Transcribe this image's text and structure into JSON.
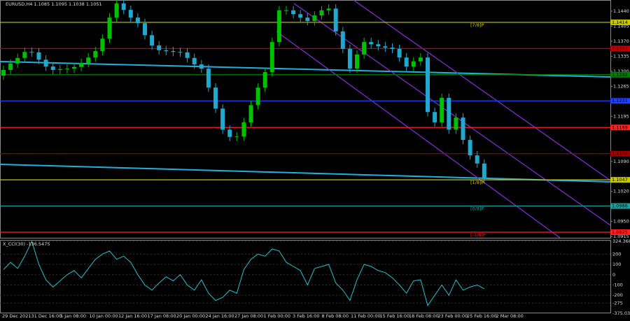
{
  "chart_data": {
    "type": "candlestick",
    "title": "EURUSD,H4  1.1085 1.1095 1.1038 1.1051",
    "up_color": "#00c000",
    "down_color": "#20a8d0",
    "ylim": [
      1.0912,
      1.1466
    ],
    "yticks": [
      {
        "value": 1.144,
        "label": "1.1440"
      },
      1.1405,
      {
        "value": 1.137,
        "label": "1.1370"
      },
      1.1335,
      {
        "value": 1.13,
        "label": "1.1300"
      },
      1.1265,
      1.1195,
      {
        "value": 1.109,
        "label": "1.1090"
      },
      {
        "value": 1.102,
        "label": "1.1020"
      },
      {
        "value": 1.095,
        "label": "1.0950"
      },
      1.0915
    ],
    "x_labels": [
      "29 Dec 2021",
      "31 Dec 16:00",
      "5 Jan 08:00",
      "10 Jan 00:00",
      "12 Jan 16:00",
      "17 Jan 08:00",
      "20 Jan 00:00",
      "24 Jan 16:00",
      "27 Jan 08:00",
      "1 Feb 00:00",
      "3 Feb 16:00",
      "8 Feb 08:00",
      "11 Feb 00:00",
      "15 Feb 16:00",
      "18 Feb 08:00",
      "23 Feb 00:00",
      "25 Feb 16:00",
      "2 Mar 08:00"
    ],
    "open": [
      1.129,
      1.1303,
      1.1318,
      1.1331,
      1.1345,
      1.1344,
      1.1327,
      1.1311,
      1.1303,
      1.1305,
      1.1306,
      1.131,
      1.1319,
      1.1332,
      1.1347,
      1.1376,
      1.1425,
      1.1458,
      1.1443,
      1.1425,
      1.1412,
      1.1384,
      1.136,
      1.1349,
      1.1347,
      1.1345,
      1.1344,
      1.1331,
      1.1316,
      1.1306,
      1.1262,
      1.1213,
      1.1164,
      1.1147,
      1.1148,
      1.1181,
      1.1221,
      1.1262,
      1.1298,
      1.1368,
      1.1442,
      1.1442,
      1.1433,
      1.1425,
      1.1417,
      1.143,
      1.1442,
      1.1446,
      1.1393,
      1.1352,
      1.1306,
      1.1339,
      1.1368,
      1.1363,
      1.1358,
      1.1355,
      1.1352,
      1.1332,
      1.1311,
      1.1323,
      1.1332,
      1.1205,
      1.1181,
      1.1238,
      1.1164,
      1.1192,
      1.114,
      1.1104,
      1.1085
    ],
    "high": [
      1.1313,
      1.1328,
      1.1341,
      1.1355,
      1.1355,
      1.1354,
      1.1337,
      1.1321,
      1.1315,
      1.1316,
      1.132,
      1.1329,
      1.1342,
      1.1357,
      1.1386,
      1.1435,
      1.1468,
      1.1468,
      1.1453,
      1.1435,
      1.1422,
      1.1394,
      1.137,
      1.1359,
      1.1357,
      1.1355,
      1.1354,
      1.1341,
      1.1326,
      1.1316,
      1.1272,
      1.1223,
      1.1174,
      1.1158,
      1.1191,
      1.1231,
      1.1272,
      1.1308,
      1.1378,
      1.1452,
      1.1452,
      1.1452,
      1.1443,
      1.1435,
      1.144,
      1.1452,
      1.1456,
      1.1456,
      1.1403,
      1.1362,
      1.1349,
      1.1378,
      1.1378,
      1.1373,
      1.1368,
      1.1365,
      1.1362,
      1.1342,
      1.1333,
      1.1342,
      1.1342,
      1.1215,
      1.1248,
      1.1248,
      1.1202,
      1.1202,
      1.115,
      1.1114,
      1.1095
    ],
    "low": [
      1.128,
      1.1293,
      1.1308,
      1.1321,
      1.1334,
      1.1317,
      1.1301,
      1.1293,
      1.1293,
      1.1295,
      1.1296,
      1.13,
      1.1309,
      1.1322,
      1.1337,
      1.1366,
      1.1415,
      1.1433,
      1.1415,
      1.1402,
      1.1374,
      1.135,
      1.1339,
      1.1337,
      1.1335,
      1.1334,
      1.1321,
      1.1306,
      1.1296,
      1.1252,
      1.1203,
      1.1154,
      1.1137,
      1.1137,
      1.1138,
      1.1171,
      1.1211,
      1.1252,
      1.1288,
      1.1358,
      1.1432,
      1.1423,
      1.1415,
      1.1407,
      1.1407,
      1.142,
      1.1432,
      1.1383,
      1.1342,
      1.1296,
      1.1296,
      1.1329,
      1.1353,
      1.1348,
      1.1345,
      1.1342,
      1.1322,
      1.1301,
      1.1301,
      1.1313,
      1.1195,
      1.1171,
      1.1171,
      1.1154,
      1.1154,
      1.113,
      1.1094,
      1.1075,
      1.1038
    ],
    "close": [
      1.1303,
      1.1318,
      1.1331,
      1.1345,
      1.1344,
      1.1327,
      1.1311,
      1.1303,
      1.1305,
      1.1306,
      1.131,
      1.1319,
      1.1332,
      1.1347,
      1.1376,
      1.1425,
      1.1458,
      1.1443,
      1.1425,
      1.1412,
      1.1384,
      1.136,
      1.1349,
      1.1347,
      1.1345,
      1.1344,
      1.1331,
      1.1316,
      1.1306,
      1.1262,
      1.1213,
      1.1164,
      1.1147,
      1.1148,
      1.1181,
      1.1221,
      1.1262,
      1.1298,
      1.1368,
      1.1442,
      1.1442,
      1.1433,
      1.1425,
      1.1417,
      1.143,
      1.1442,
      1.1446,
      1.1393,
      1.1352,
      1.1306,
      1.1339,
      1.1368,
      1.1363,
      1.1358,
      1.1355,
      1.1352,
      1.1332,
      1.1311,
      1.1323,
      1.1332,
      1.1205,
      1.1181,
      1.1238,
      1.1164,
      1.1192,
      1.114,
      1.1104,
      1.1085,
      1.1051
    ],
    "levels": [
      {
        "value": 1.1414,
        "color": "#c8c800",
        "tag": "[7/8]P"
      },
      {
        "value": 1.1353,
        "color": "#c00000"
      },
      {
        "value": 1.1292,
        "color": "#008000"
      },
      {
        "value": 1.1231,
        "color": "#2040ff"
      },
      {
        "value": 1.1169,
        "color": "#ff2020"
      },
      {
        "value": 1.1108,
        "color": "#a00000"
      },
      {
        "value": 1.1047,
        "color": "#c8c800",
        "tag": "[1/8]P"
      },
      {
        "value": 1.0986,
        "color": "#20a0a0",
        "tag": "[0/8]P"
      },
      {
        "value": 1.0925,
        "color": "#ff2020",
        "tag": "[-1/8]P"
      }
    ],
    "indicator": {
      "title": "X_CCI(30) -136.5475",
      "color": "#20c0d0",
      "ylim": [
        -375.0399,
        324.3682
      ],
      "yticks": [
        324.3682,
        200,
        100,
        0,
        -100,
        -200,
        -275,
        -375.0399
      ],
      "values": [
        50,
        120,
        60,
        180,
        324,
        100,
        -50,
        -120,
        -60,
        0,
        40,
        -30,
        60,
        150,
        200,
        230,
        150,
        180,
        120,
        0,
        -100,
        -150,
        -80,
        -20,
        -60,
        0,
        -100,
        -150,
        -50,
        -180,
        -250,
        -220,
        -150,
        -180,
        50,
        150,
        200,
        180,
        250,
        230,
        120,
        80,
        40,
        -100,
        60,
        80,
        100,
        -80,
        -150,
        -250,
        -50,
        100,
        80,
        40,
        20,
        -30,
        -100,
        -180,
        -60,
        -50,
        -300,
        -200,
        -100,
        -200,
        -50,
        -150,
        -120,
        -100,
        -136.5475
      ]
    }
  }
}
